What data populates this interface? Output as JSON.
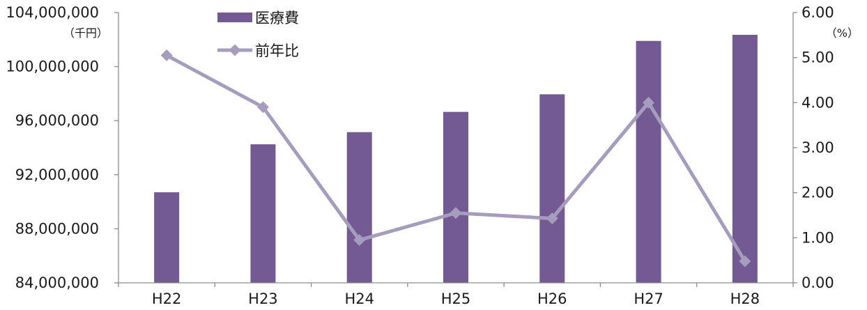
{
  "chart_data": {
    "type": "bar",
    "categories": [
      "H22",
      "H23",
      "H24",
      "H25",
      "H26",
      "H27",
      "H28"
    ],
    "series": [
      {
        "name": "医療費",
        "type": "bar",
        "axis": "left",
        "color": "#735a92",
        "values": [
          90700000,
          94250000,
          95150000,
          96650000,
          97950000,
          101900000,
          102350000
        ]
      },
      {
        "name": "前年比",
        "type": "line",
        "axis": "right",
        "color": "#a59cbe",
        "values": [
          5.05,
          3.9,
          0.95,
          1.55,
          1.43,
          4.0,
          0.48
        ]
      }
    ],
    "y_left": {
      "unit": "（千円）",
      "ylim": [
        84000000,
        104000000
      ],
      "tick_labels": [
        "84,000,000",
        "88,000,000",
        "92,000,000",
        "96,000,000",
        "100,000,000",
        "104,000,000"
      ]
    },
    "y_right": {
      "unit": "（%）",
      "ylim": [
        0,
        6
      ],
      "tick_labels": [
        "0.00",
        "1.00",
        "2.00",
        "3.00",
        "4.00",
        "5.00",
        "6.00"
      ]
    },
    "legend": {
      "placement": "top-center"
    },
    "grid": false
  }
}
